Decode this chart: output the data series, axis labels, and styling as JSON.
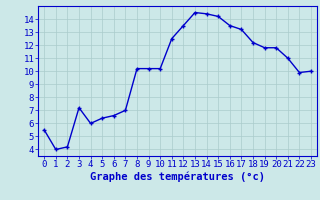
{
  "hours": [
    0,
    1,
    2,
    3,
    4,
    5,
    6,
    7,
    8,
    9,
    10,
    11,
    12,
    13,
    14,
    15,
    16,
    17,
    18,
    19,
    20,
    21,
    22,
    23
  ],
  "temps": [
    5.5,
    4.0,
    4.2,
    7.2,
    6.0,
    6.4,
    6.6,
    7.0,
    10.2,
    10.2,
    10.2,
    12.5,
    13.5,
    14.5,
    14.4,
    14.2,
    13.5,
    13.2,
    12.2,
    11.8,
    11.8,
    11.0,
    9.9,
    10.0
  ],
  "line_color": "#0000cc",
  "marker_color": "#0000cc",
  "bg_color": "#cce8e8",
  "grid_color": "#aacccc",
  "xlabel": "Graphe des températures (°c)",
  "xlabel_color": "#0000cc",
  "ylim": [
    3.5,
    15.0
  ],
  "xlim": [
    -0.5,
    23.5
  ],
  "yticks": [
    4,
    5,
    6,
    7,
    8,
    9,
    10,
    11,
    12,
    13,
    14
  ],
  "xtick_labels": [
    "0",
    "1",
    "2",
    "3",
    "4",
    "5",
    "6",
    "7",
    "8",
    "9",
    "10",
    "11",
    "12",
    "13",
    "14",
    "15",
    "16",
    "17",
    "18",
    "19",
    "20",
    "21",
    "22",
    "23"
  ],
  "tick_fontsize": 6.5,
  "xlabel_fontsize": 7.5
}
